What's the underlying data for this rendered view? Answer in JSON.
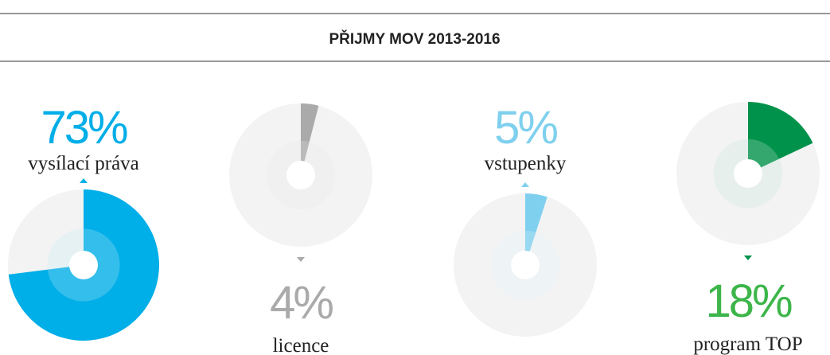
{
  "chart_data": {
    "type": "pie",
    "title": "PŘIJMY MOV 2013-2016",
    "categories": [
      "vysílací práva",
      "licence",
      "vstupenky",
      "program TOP"
    ],
    "values": [
      73,
      4,
      5,
      18
    ],
    "value_labels": [
      "73%",
      "4%",
      "5%",
      "18%"
    ],
    "colors": [
      "#00aee8",
      "#aaaaaa",
      "#7fd0ee",
      "#00924a"
    ]
  }
}
